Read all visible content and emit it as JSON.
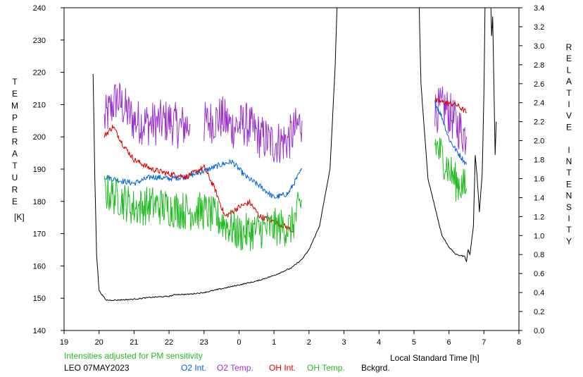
{
  "chart_data": {
    "type": "line",
    "xlabel": "Local Standard Time [h]",
    "ylabel_left": "TEMPERATURE",
    "ylabel_left_unit": "[K]",
    "ylabel_right": "RELATIVE INTENSITY",
    "note": "Intensities adjusted for PM sensitivity",
    "station_date": "LEO 07MAY2023",
    "x_ticks": [
      "19",
      "20",
      "21",
      "22",
      "23",
      "0",
      "1",
      "2",
      "3",
      "4",
      "5",
      "6",
      "7",
      "8"
    ],
    "x_range": [
      19,
      32
    ],
    "y_left_range": [
      140,
      240
    ],
    "y_left_ticks": [
      "140",
      "150",
      "160",
      "170",
      "180",
      "190",
      "200",
      "210",
      "220",
      "230",
      "240"
    ],
    "y_right_range": [
      0.0,
      3.4
    ],
    "y_right_ticks": [
      "0.0",
      "0.2",
      "0.4",
      "0.6",
      "0.8",
      "1.0",
      "1.2",
      "1.4",
      "1.6",
      "1.8",
      "2.0",
      "2.2",
      "2.4",
      "2.6",
      "2.8",
      "3.0",
      "3.2",
      "3.4"
    ],
    "legend": [
      {
        "key": "o2_int",
        "label": "O2 Int.",
        "color": "#0066dd"
      },
      {
        "key": "o2_temp",
        "label": "O2 Temp.",
        "color": "#9933cc"
      },
      {
        "key": "oh_int",
        "label": "OH Int.",
        "color": "#dd0000"
      },
      {
        "key": "oh_temp",
        "label": "OH Temp.",
        "color": "#22bb22"
      },
      {
        "key": "bckgrd",
        "label": "Bckgrd.",
        "color": "#000000"
      }
    ],
    "note_color": "#22bb22",
    "series": [
      {
        "name": "O2 Temp.",
        "key": "o2_temp",
        "axis": "left",
        "color": "#9933cc",
        "noise": 7,
        "segments": [
          [
            [
              20.15,
              205
            ],
            [
              20.5,
              212
            ],
            [
              21.0,
              205
            ],
            [
              21.5,
              204
            ],
            [
              22.0,
              205
            ],
            [
              22.3,
              203
            ],
            [
              22.6,
              204
            ]
          ],
          [
            [
              23.0,
              204
            ],
            [
              23.5,
              206
            ],
            [
              23.8,
              203
            ],
            [
              24.2,
              204
            ],
            [
              24.6,
              200
            ],
            [
              25.0,
              198
            ],
            [
              25.4,
              199
            ],
            [
              25.8,
              205
            ]
          ]
        ],
        "segments_right": [
          [
            [
              29.6,
              208
            ],
            [
              29.9,
              209
            ],
            [
              30.2,
              204
            ],
            [
              30.5,
              200
            ]
          ]
        ]
      },
      {
        "name": "O2 Int.",
        "key": "o2_int",
        "axis": "right",
        "color": "#0066dd",
        "noise": 0.03,
        "segments": [
          [
            [
              20.15,
              1.62
            ],
            [
              20.6,
              1.58
            ],
            [
              21.0,
              1.55
            ],
            [
              21.5,
              1.62
            ],
            [
              22.0,
              1.6
            ],
            [
              22.5,
              1.62
            ],
            [
              23.0,
              1.68
            ],
            [
              23.5,
              1.75
            ],
            [
              23.8,
              1.78
            ],
            [
              24.2,
              1.62
            ],
            [
              24.6,
              1.52
            ],
            [
              25.0,
              1.4
            ],
            [
              25.4,
              1.44
            ],
            [
              25.8,
              1.7
            ]
          ],
          [
            [
              29.6,
              2.4
            ],
            [
              29.8,
              2.25
            ],
            [
              30.0,
              2.02
            ],
            [
              30.2,
              1.9
            ],
            [
              30.5,
              1.75
            ]
          ]
        ]
      },
      {
        "name": "OH Int.",
        "key": "oh_int",
        "axis": "right",
        "color": "#dd0000",
        "noise": 0.03,
        "segments": [
          [
            [
              20.15,
              2.05
            ],
            [
              20.4,
              2.15
            ],
            [
              20.7,
              1.95
            ],
            [
              21.0,
              1.8
            ],
            [
              21.5,
              1.7
            ],
            [
              22.0,
              1.65
            ],
            [
              22.5,
              1.62
            ],
            [
              23.0,
              1.72
            ],
            [
              23.3,
              1.5
            ],
            [
              23.6,
              1.2
            ],
            [
              24.0,
              1.3
            ],
            [
              24.3,
              1.35
            ],
            [
              24.6,
              1.2
            ],
            [
              25.0,
              1.15
            ],
            [
              25.3,
              1.1
            ],
            [
              25.55,
              1.05
            ]
          ],
          [
            [
              29.6,
              2.42
            ],
            [
              29.9,
              2.4
            ],
            [
              30.2,
              2.38
            ],
            [
              30.5,
              2.3
            ]
          ]
        ]
      },
      {
        "name": "OH Temp.",
        "key": "oh_temp",
        "axis": "left",
        "color": "#22bb22",
        "noise": 6,
        "segments": [
          [
            [
              20.15,
              183
            ],
            [
              20.6,
              181
            ],
            [
              21.0,
              178
            ],
            [
              21.5,
              179
            ],
            [
              22.0,
              178
            ],
            [
              22.5,
              177
            ],
            [
              23.0,
              177
            ],
            [
              23.5,
              174
            ],
            [
              24.0,
              170
            ],
            [
              24.5,
              171
            ],
            [
              25.0,
              172
            ],
            [
              25.5,
              172
            ],
            [
              25.8,
              180
            ]
          ],
          [
            [
              29.6,
              198
            ],
            [
              29.9,
              192
            ],
            [
              30.2,
              186
            ],
            [
              30.5,
              184
            ]
          ]
        ]
      },
      {
        "name": "Bckgrd.",
        "key": "bckgrd",
        "axis": "right",
        "color": "#000000",
        "noise": 0.006,
        "segments": [
          [
            [
              19.83,
              2.7
            ],
            [
              19.88,
              1.6
            ],
            [
              19.93,
              0.8
            ],
            [
              20.0,
              0.42
            ],
            [
              20.2,
              0.32
            ],
            [
              20.5,
              0.32
            ],
            [
              21.0,
              0.33
            ],
            [
              21.5,
              0.35
            ],
            [
              22.0,
              0.36
            ],
            [
              22.2,
              0.38
            ],
            [
              22.5,
              0.38
            ],
            [
              23.0,
              0.4
            ],
            [
              23.5,
              0.44
            ],
            [
              24.0,
              0.48
            ],
            [
              24.5,
              0.52
            ],
            [
              25.0,
              0.58
            ],
            [
              25.5,
              0.66
            ],
            [
              25.8,
              0.75
            ],
            [
              26.0,
              0.85
            ],
            [
              26.3,
              1.1
            ],
            [
              26.6,
              1.7
            ],
            [
              26.75,
              2.8
            ],
            [
              26.8,
              3.4
            ]
          ],
          [
            [
              29.15,
              3.4
            ],
            [
              29.2,
              2.6
            ],
            [
              29.4,
              1.6
            ],
            [
              29.6,
              1.3
            ],
            [
              29.8,
              1.0
            ],
            [
              30.0,
              0.88
            ],
            [
              30.2,
              0.8
            ],
            [
              30.45,
              0.78
            ],
            [
              30.5,
              0.73
            ],
            [
              30.55,
              0.85
            ],
            [
              30.6,
              0.8
            ],
            [
              30.7,
              1.1
            ],
            [
              30.75,
              1.85
            ],
            [
              30.8,
              1.65
            ],
            [
              30.87,
              1.25
            ],
            [
              30.95,
              1.65
            ],
            [
              31.0,
              2.5
            ],
            [
              31.03,
              3.4
            ]
          ],
          [
            [
              31.2,
              3.4
            ],
            [
              31.22,
              3.1
            ],
            [
              31.25,
              3.3
            ],
            [
              31.28,
              2.7
            ],
            [
              31.32,
              1.85
            ],
            [
              31.35,
              2.2
            ]
          ]
        ]
      }
    ]
  }
}
